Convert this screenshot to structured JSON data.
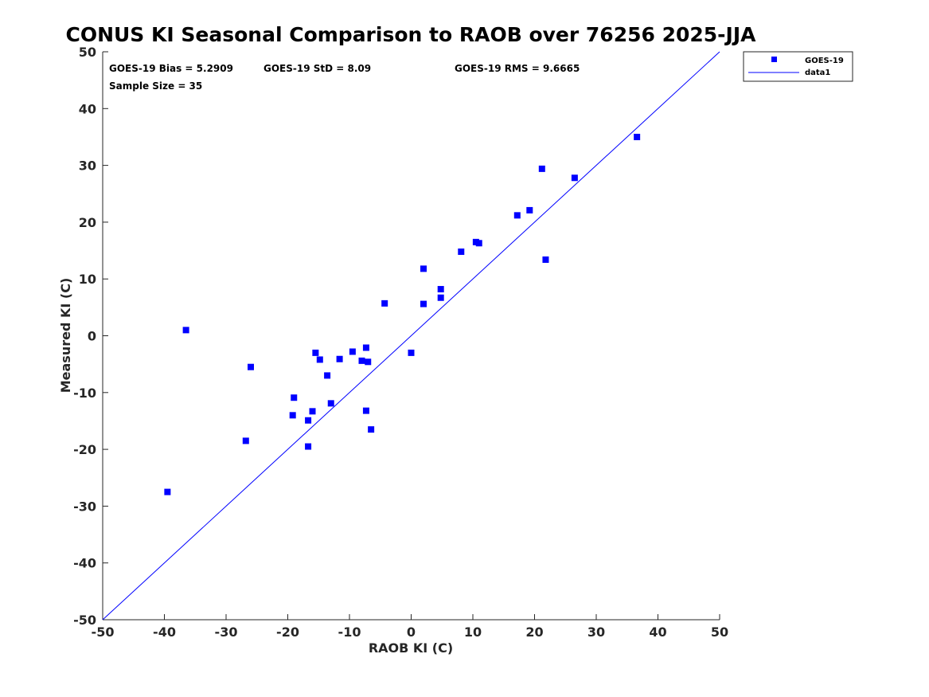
{
  "chart_data": {
    "type": "scatter",
    "title": "CONUS KI Seasonal Comparison to RAOB over 76256 2025-JJA",
    "xlabel": "RAOB KI (C)",
    "ylabel": "Measured KI (C)",
    "xlim": [
      -50,
      50
    ],
    "ylim": [
      -50,
      50
    ],
    "xticks": [
      -50,
      -40,
      -30,
      -20,
      -10,
      0,
      10,
      20,
      30,
      40,
      50
    ],
    "yticks": [
      -50,
      -40,
      -30,
      -20,
      -10,
      0,
      10,
      20,
      30,
      40,
      50
    ],
    "grid": false,
    "legend_position": "top-right outside",
    "stats": {
      "bias": "GOES-19 Bias = 5.2909",
      "std": "GOES-19 StD = 8.09",
      "rms": "GOES-19 RMS = 9.6665",
      "sample": "Sample Size = 35"
    },
    "series": [
      {
        "name": "GOES-19",
        "marker": "square",
        "color": "#0000ff",
        "points": [
          [
            -39.5,
            -27.5
          ],
          [
            -36.5,
            1.0
          ],
          [
            -26.8,
            -18.5
          ],
          [
            -26.0,
            -5.5
          ],
          [
            -19.2,
            -14.0
          ],
          [
            -19.0,
            -10.9
          ],
          [
            -16.7,
            -14.9
          ],
          [
            -16.7,
            -19.5
          ],
          [
            -16.0,
            -13.3
          ],
          [
            -15.5,
            -3.0
          ],
          [
            -14.8,
            -4.2
          ],
          [
            -13.6,
            -7.0
          ],
          [
            -13.0,
            -11.9
          ],
          [
            -11.6,
            -4.1
          ],
          [
            -9.5,
            -2.8
          ],
          [
            -8.0,
            -4.4
          ],
          [
            -7.3,
            -2.1
          ],
          [
            -7.3,
            -13.2
          ],
          [
            -7.0,
            -4.6
          ],
          [
            -6.5,
            -16.5
          ],
          [
            -4.3,
            5.7
          ],
          [
            0.0,
            -3.0
          ],
          [
            2.0,
            11.8
          ],
          [
            2.0,
            5.6
          ],
          [
            4.8,
            8.2
          ],
          [
            4.8,
            6.7
          ],
          [
            8.1,
            14.8
          ],
          [
            10.5,
            16.5
          ],
          [
            11.0,
            16.3
          ],
          [
            17.2,
            21.2
          ],
          [
            19.2,
            22.1
          ],
          [
            21.2,
            29.4
          ],
          [
            21.8,
            13.4
          ],
          [
            26.5,
            27.8
          ],
          [
            36.6,
            35.0
          ]
        ]
      },
      {
        "name": "data1",
        "type": "line",
        "color": "#0000ff",
        "points": [
          [
            -50,
            -50
          ],
          [
            50,
            50
          ]
        ]
      }
    ]
  }
}
